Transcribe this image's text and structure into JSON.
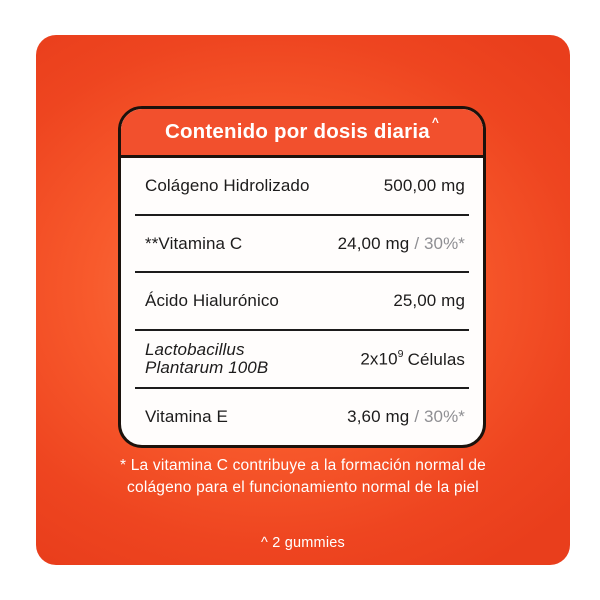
{
  "colors": {
    "bg_edge": "#e93e1c",
    "bg_mid": "#f85a2c",
    "bg_glow": "#fd7f50",
    "header_orange": "#f2502d",
    "card_bg": "#fffdfc",
    "border_dark": "#1c120c",
    "text_dark": "#1d1c1c",
    "text_gray": "#8f8f93",
    "text_white": "#ffffff"
  },
  "card": {
    "title": "Contenido por dosis diaria",
    "title_superscript": "^",
    "rows": [
      {
        "label": "Colágeno Hidrolizado",
        "value": "500,00 mg",
        "suffix": ""
      },
      {
        "label": "**Vitamina C",
        "value": "24,00 mg",
        "suffix": "/ 30%*"
      },
      {
        "label": "Ácido Hialurónico",
        "value": "25,00 mg",
        "suffix": ""
      },
      {
        "label_line1": "Lactobacillus",
        "label_line2": "Plantarum 100B",
        "value_base": "2x10",
        "value_exponent": "9",
        "value_unit": "Células"
      },
      {
        "label": "Vitamina E",
        "value": "3,60 mg",
        "suffix": "/ 30%*"
      }
    ]
  },
  "footnotes": {
    "vitamin_c_line1": "* La vitamina C contribuye a la formación normal de",
    "vitamin_c_line2": "colágeno para el funcionamiento normal de la piel",
    "serving_note": "^ 2 gummies"
  }
}
